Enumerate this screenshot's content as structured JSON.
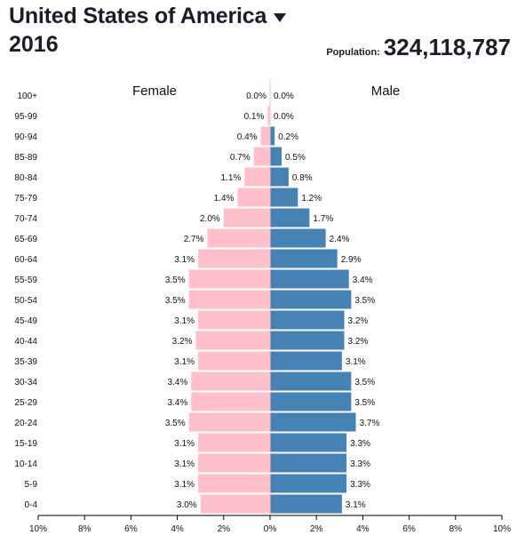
{
  "header": {
    "country": "United States of America",
    "year": "2016",
    "population_label": "Population:",
    "population_value": "324,118,787"
  },
  "colors": {
    "female": "#ffc0cb",
    "male": "#4682b4",
    "text": "#111111",
    "axis": "#000000"
  },
  "icons": {
    "dropdown": "caret-down-icon"
  },
  "chart_data": {
    "type": "bar",
    "orientation": "horizontal",
    "subtype": "population-pyramid",
    "categories": [
      "100+",
      "95-99",
      "90-94",
      "85-89",
      "80-84",
      "75-79",
      "70-74",
      "65-69",
      "60-64",
      "55-59",
      "50-54",
      "45-49",
      "40-44",
      "35-39",
      "30-34",
      "25-29",
      "20-24",
      "15-19",
      "10-14",
      "5-9",
      "0-4"
    ],
    "series": [
      {
        "name": "Female",
        "side": "left",
        "values": [
          0.0,
          0.1,
          0.4,
          0.7,
          1.1,
          1.4,
          2.0,
          2.7,
          3.1,
          3.5,
          3.5,
          3.1,
          3.2,
          3.1,
          3.4,
          3.4,
          3.5,
          3.1,
          3.1,
          3.1,
          3.0
        ],
        "labels": [
          "0.0%",
          "0.1%",
          "0.4%",
          "0.7%",
          "1.1%",
          "1.4%",
          "2.0%",
          "2.7%",
          "3.1%",
          "3.5%",
          "3.5%",
          "3.1%",
          "3.2%",
          "3.1%",
          "3.4%",
          "3.4%",
          "3.5%",
          "3.1%",
          "3.1%",
          "3.1%",
          "3.0%"
        ]
      },
      {
        "name": "Male",
        "side": "right",
        "values": [
          0.0,
          0.0,
          0.2,
          0.5,
          0.8,
          1.2,
          1.7,
          2.4,
          2.9,
          3.4,
          3.5,
          3.2,
          3.2,
          3.1,
          3.5,
          3.5,
          3.7,
          3.3,
          3.3,
          3.3,
          3.1
        ],
        "labels": [
          "0.0%",
          "0.0%",
          "0.2%",
          "0.5%",
          "0.8%",
          "1.2%",
          "1.7%",
          "2.4%",
          "2.9%",
          "3.4%",
          "3.5%",
          "3.2%",
          "3.2%",
          "3.1%",
          "3.5%",
          "3.5%",
          "3.7%",
          "3.3%",
          "3.3%",
          "3.3%",
          "3.1%"
        ]
      }
    ],
    "x_ticks": [
      {
        "value": -10,
        "label": "10%"
      },
      {
        "value": -8,
        "label": "8%"
      },
      {
        "value": -6,
        "label": "6%"
      },
      {
        "value": -4,
        "label": "4%"
      },
      {
        "value": -2,
        "label": "2%"
      },
      {
        "value": 0,
        "label": "0%"
      },
      {
        "value": 2,
        "label": "2%"
      },
      {
        "value": 4,
        "label": "4%"
      },
      {
        "value": 6,
        "label": "6%"
      },
      {
        "value": 8,
        "label": "8%"
      },
      {
        "value": 10,
        "label": "10%"
      }
    ],
    "xlim": [
      -10,
      10
    ],
    "xlabel": "",
    "ylabel": "",
    "grid": false
  }
}
